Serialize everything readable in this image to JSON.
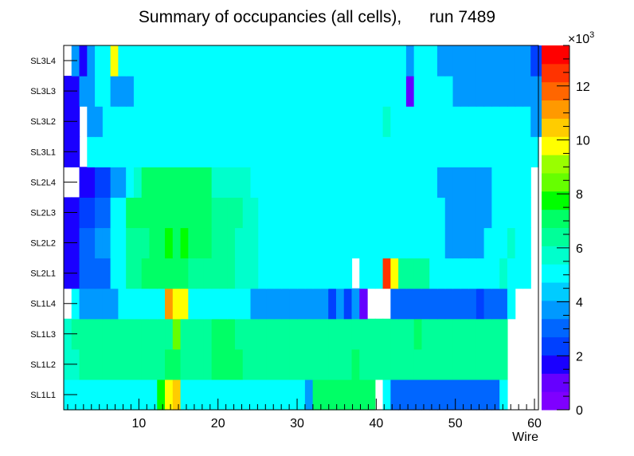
{
  "chart_data": {
    "type": "heatmap",
    "title": "Summary of occupancies (all cells),      run 7489",
    "xlabel": "Wire",
    "ylabel": "",
    "x_range": [
      0.5,
      60.5
    ],
    "x_ticks": [
      10,
      20,
      30,
      40,
      50,
      60
    ],
    "x_tick_labels": [
      "10",
      "20",
      "30",
      "40",
      "50",
      "60"
    ],
    "rows": [
      "SL1L1",
      "SL1L2",
      "SL1L3",
      "SL1L4",
      "SL2L1",
      "SL2L2",
      "SL2L3",
      "SL2L4",
      "SL3L1",
      "SL3L2",
      "SL3L3",
      "SL3L4"
    ],
    "z_range": [
      0,
      13500
    ],
    "z_ticks": [
      0,
      2,
      4,
      6,
      8,
      10,
      12
    ],
    "z_tick_labels": [
      "0",
      "2",
      "4",
      "6",
      "8",
      "10",
      "12"
    ],
    "z_multiplier": "×10",
    "z_exponent": "3",
    "values": [
      [
        5300,
        4800,
        4800,
        4800,
        4800,
        4800,
        4800,
        4800,
        4800,
        4800,
        4800,
        4800,
        7500,
        9500,
        10500,
        5300,
        5300,
        5300,
        5300,
        5300,
        5300,
        5300,
        4800,
        4800,
        4800,
        4800,
        4800,
        4800,
        4800,
        4800,
        4800,
        3500,
        7200,
        7200,
        7200,
        7200,
        7200,
        7200,
        7200,
        7200,
        0,
        4800,
        3300,
        3300,
        3300,
        3300,
        3300,
        3300,
        3300,
        3300,
        3300,
        3300,
        3300,
        3300,
        3300,
        3300,
        5300,
        0,
        0,
        0,
        0
      ],
      [
        5800,
        5800,
        6300,
        6300,
        6300,
        6300,
        6300,
        6300,
        6300,
        6300,
        6300,
        6300,
        6300,
        6800,
        6800,
        6300,
        6300,
        6300,
        6300,
        6800,
        6800,
        6800,
        6800,
        6300,
        6300,
        6300,
        6300,
        6300,
        6300,
        6300,
        6300,
        6300,
        6300,
        6300,
        6300,
        6300,
        6300,
        6800,
        6300,
        6300,
        6300,
        6300,
        6300,
        6300,
        6300,
        6300,
        6300,
        6300,
        6300,
        6300,
        6300,
        6300,
        6300,
        6300,
        6300,
        6300,
        6300,
        0,
        0,
        0,
        0
      ],
      [
        5800,
        6300,
        6300,
        6300,
        6300,
        6300,
        6300,
        6300,
        6300,
        6300,
        6300,
        6300,
        6300,
        6300,
        8500,
        6300,
        6300,
        6300,
        6300,
        6800,
        6800,
        6800,
        6300,
        6300,
        6300,
        6300,
        6300,
        6300,
        6300,
        6300,
        6300,
        6300,
        6300,
        6300,
        6300,
        6300,
        6300,
        6300,
        6300,
        6300,
        6300,
        6300,
        6300,
        6300,
        6300,
        6800,
        6300,
        6300,
        6300,
        6300,
        6300,
        6300,
        6300,
        6300,
        6300,
        6300,
        6300,
        0,
        0,
        0,
        0
      ],
      [
        0,
        4800,
        3500,
        3500,
        3500,
        3500,
        3500,
        4800,
        4800,
        4800,
        5300,
        5300,
        5300,
        11000,
        9500,
        9500,
        4800,
        4800,
        4800,
        4800,
        4800,
        4800,
        4800,
        4800,
        3500,
        3500,
        3500,
        3500,
        3500,
        3500,
        3500,
        3500,
        3500,
        3500,
        2500,
        3500,
        2500,
        3500,
        1200,
        0,
        0,
        0,
        3000,
        3000,
        3000,
        3000,
        3000,
        3000,
        3000,
        3000,
        3000,
        3000,
        3000,
        2500,
        3000,
        3000,
        3000,
        4800,
        0,
        0,
        0,
        0
      ],
      [
        2000,
        2000,
        3000,
        3000,
        3000,
        3000,
        4800,
        4800,
        6300,
        6300,
        6800,
        6800,
        6800,
        6800,
        6800,
        6800,
        6300,
        6300,
        6300,
        6300,
        6300,
        6300,
        5800,
        5800,
        5800,
        4800,
        4800,
        4800,
        4800,
        4800,
        4800,
        4800,
        4800,
        4800,
        4800,
        4800,
        4800,
        0,
        4800,
        4800,
        4800,
        12500,
        9500,
        6300,
        6300,
        6300,
        6300,
        5300,
        5300,
        5300,
        5300,
        5300,
        5300,
        5300,
        5300,
        5300,
        5800,
        5300,
        4800,
        4800,
        0,
        0
      ],
      [
        2000,
        2000,
        2800,
        2800,
        3500,
        3500,
        4800,
        4800,
        6300,
        6300,
        6300,
        6800,
        6800,
        7500,
        6800,
        7500,
        6800,
        6800,
        6800,
        6300,
        6300,
        6300,
        5800,
        5800,
        5800,
        4800,
        4800,
        4800,
        4800,
        4800,
        4800,
        4800,
        4800,
        4800,
        4800,
        4800,
        4800,
        4800,
        4800,
        5300,
        5300,
        5300,
        4800,
        4800,
        4800,
        4800,
        4800,
        4800,
        4800,
        3500,
        3500,
        3500,
        3500,
        3500,
        4800,
        4800,
        5300,
        5800,
        4800,
        4800,
        0,
        0
      ],
      [
        1800,
        1800,
        2500,
        2500,
        3000,
        3000,
        4800,
        4800,
        6800,
        6800,
        6800,
        6800,
        6800,
        6800,
        6800,
        6800,
        6800,
        6800,
        6800,
        6300,
        6300,
        6300,
        6300,
        5800,
        5800,
        4800,
        4800,
        4800,
        4800,
        4800,
        4800,
        4800,
        4800,
        4800,
        4800,
        4800,
        4800,
        4800,
        4800,
        4800,
        4800,
        4800,
        4800,
        4800,
        4800,
        4800,
        4800,
        4800,
        4800,
        3500,
        3500,
        3500,
        3500,
        3500,
        3500,
        4800,
        5300,
        5300,
        4800,
        4800,
        0,
        0
      ],
      [
        0,
        0,
        1500,
        1500,
        2500,
        2500,
        3500,
        3500,
        4800,
        5800,
        6800,
        6800,
        6800,
        6800,
        6800,
        6800,
        6800,
        6800,
        6800,
        5800,
        5800,
        5800,
        5800,
        5800,
        4800,
        4800,
        4800,
        4800,
        4800,
        4800,
        4800,
        4800,
        4800,
        4800,
        4800,
        4800,
        4800,
        4800,
        4800,
        4800,
        4800,
        4800,
        4800,
        4800,
        4800,
        4800,
        4800,
        4800,
        3500,
        3500,
        3500,
        3500,
        3500,
        3500,
        3500,
        4800,
        4800,
        4800,
        4800,
        4800,
        0,
        0
      ],
      [
        1800,
        1800,
        0,
        4800,
        4800,
        4800,
        4800,
        4800,
        4800,
        4800,
        4800,
        4800,
        4800,
        4800,
        4800,
        4800,
        4800,
        4800,
        5300,
        5300,
        5300,
        5300,
        5300,
        5300,
        4800,
        4800,
        4800,
        4800,
        4800,
        5300,
        4800,
        5300,
        5300,
        4800,
        4800,
        5300,
        4800,
        4800,
        5300,
        5300,
        5300,
        5300,
        4800,
        4800,
        4800,
        4800,
        4800,
        5300,
        4800,
        4800,
        4800,
        4800,
        4800,
        4800,
        5300,
        4800,
        4800,
        4800,
        4800,
        5300,
        4800,
        0
      ],
      [
        1800,
        1800,
        0,
        3500,
        3500,
        4800,
        4800,
        4800,
        4800,
        4800,
        4800,
        4800,
        4800,
        4800,
        4800,
        4800,
        4800,
        4800,
        4800,
        5300,
        4800,
        4800,
        4800,
        4800,
        4800,
        4800,
        4800,
        4800,
        4800,
        4800,
        4800,
        5300,
        4800,
        4800,
        4800,
        4800,
        4800,
        4800,
        4800,
        4800,
        4800,
        5800,
        4800,
        4800,
        5300,
        4800,
        4800,
        4800,
        4800,
        4800,
        4800,
        5300,
        4800,
        4800,
        4800,
        4800,
        4800,
        4800,
        4800,
        4800,
        3500,
        3500
      ],
      [
        1800,
        1800,
        3500,
        3500,
        4800,
        4800,
        3500,
        3500,
        3500,
        4800,
        4800,
        4800,
        4800,
        4800,
        4800,
        4800,
        4800,
        4800,
        4800,
        4800,
        4800,
        4800,
        4800,
        4800,
        4800,
        4800,
        4800,
        4800,
        4800,
        4800,
        4800,
        4800,
        4800,
        4800,
        4800,
        4800,
        4800,
        4800,
        4800,
        4800,
        4800,
        4800,
        4800,
        4800,
        1200,
        4800,
        4800,
        4800,
        4800,
        4800,
        3500,
        3500,
        3500,
        3500,
        3500,
        3500,
        3500,
        3500,
        3500,
        3500,
        3500,
        3500
      ],
      [
        0,
        3500,
        2000,
        3500,
        4800,
        4800,
        9500,
        4800,
        4800,
        4800,
        4800,
        4800,
        4800,
        4800,
        4800,
        4800,
        4800,
        4800,
        4800,
        4800,
        4800,
        4800,
        4800,
        4800,
        4800,
        4800,
        4800,
        4800,
        4800,
        4800,
        4800,
        4800,
        4800,
        4800,
        4800,
        4800,
        4800,
        4800,
        4800,
        4800,
        4800,
        4800,
        4800,
        4800,
        3500,
        4800,
        4800,
        4800,
        3500,
        3500,
        3500,
        3500,
        3500,
        3500,
        3500,
        3500,
        3500,
        3500,
        3500,
        3500,
        2500,
        2500
      ]
    ]
  }
}
